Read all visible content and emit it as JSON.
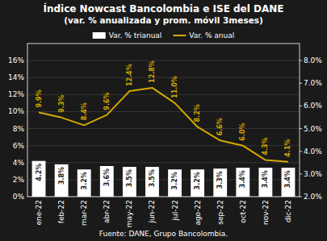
{
  "chart_data": {
    "type": "bar",
    "title": "Índice Nowcast Bancolombia e ISE del DANE",
    "subtitle": "(var. % anualizada y prom. móvil 3meses)",
    "annotations": [
      "Fuente: DANE, Grupo Bancolombia."
    ],
    "categories": [
      "ene-22",
      "feb-22",
      "mar-22",
      "abr-22",
      "may-22",
      "jun-22",
      "jul-22",
      "ago-22",
      "sep-22",
      "oct-22",
      "nov-22",
      "dic-22"
    ],
    "series": [
      {
        "name": "Var. % trianual",
        "type": "bar",
        "color": "#ffffff",
        "values": [
          4.2,
          3.8,
          3.2,
          3.6,
          3.5,
          3.5,
          3.2,
          3.2,
          3.3,
          3.4,
          3.4,
          3.4
        ],
        "value_labels": [
          "4.2%",
          "3.8%",
          "3.2%",
          "3.6%",
          "3.5%",
          "3.5%",
          "3.2%",
          "3.2%",
          "3.3%",
          "3.4%",
          "3.4%",
          "3.4%"
        ]
      },
      {
        "name": "Var. % anual",
        "type": "line",
        "color": "#d4a800",
        "values": [
          9.9,
          9.3,
          8.4,
          9.6,
          12.4,
          12.8,
          11.0,
          8.2,
          6.6,
          6.0,
          4.3,
          4.1
        ],
        "value_labels": [
          "9.9%",
          "9.3%",
          "8.4%",
          "9.6%",
          "12.4%",
          "12.8%",
          "11.0%",
          "8.2%",
          "6.6%",
          "6.0%",
          "4.3%",
          "4.1%"
        ]
      }
    ],
    "ylim": [
      0,
      18
    ],
    "yticks": [
      {
        "value": 0,
        "label": "0%"
      },
      {
        "value": 2,
        "label": "2%"
      },
      {
        "value": 4,
        "label": "4%"
      },
      {
        "value": 6,
        "label": "6%"
      },
      {
        "value": 8,
        "label": "8%"
      },
      {
        "value": 10,
        "label": "10%"
      },
      {
        "value": 12,
        "label": "12%"
      },
      {
        "value": 14,
        "label": "14%"
      },
      {
        "value": 16,
        "label": "16%"
      }
    ],
    "y2lim": [
      2.0,
      8.75
    ],
    "y2ticks": [
      {
        "value": 2.0,
        "label": "2.0%"
      },
      {
        "value": 3.0,
        "label": "3.0%"
      },
      {
        "value": 4.0,
        "label": "4.0%"
      },
      {
        "value": 5.0,
        "label": "5.0%"
      },
      {
        "value": 6.0,
        "label": "6.0%"
      },
      {
        "value": 7.0,
        "label": "7.0%"
      },
      {
        "value": 8.0,
        "label": "8.0%"
      }
    ],
    "grid": true,
    "legend": "top",
    "data_labels": true
  }
}
